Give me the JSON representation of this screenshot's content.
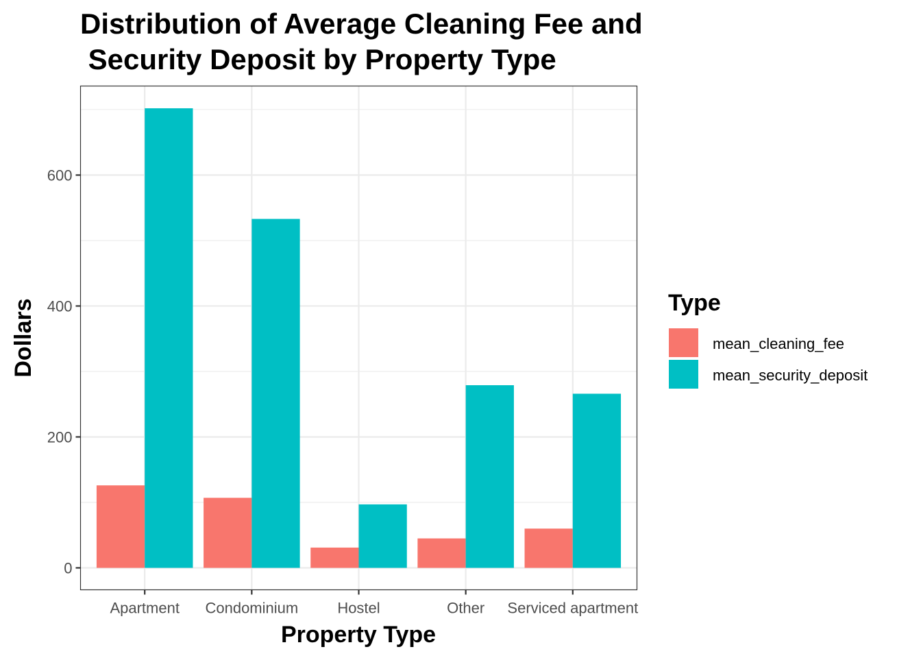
{
  "chart_data": {
    "type": "bar",
    "title_lines": [
      "Distribution of Average Cleaning Fee and",
      " Security Deposit by Property Type"
    ],
    "xlabel": "Property Type",
    "ylabel": "Dollars",
    "categories": [
      "Apartment",
      "Condominium",
      "Hostel",
      "Other",
      "Serviced apartment"
    ],
    "series": [
      {
        "name": "mean_cleaning_fee",
        "color": "#F8766D",
        "values": [
          126,
          107,
          31,
          45,
          60
        ]
      },
      {
        "name": "mean_security_deposit",
        "color": "#00BFC4",
        "values": [
          702,
          533,
          97,
          279,
          266
        ]
      }
    ],
    "ylim": [
      -33.5,
      736
    ],
    "yticks": [
      0,
      200,
      400,
      600
    ],
    "ytick_labels": [
      "0",
      "200",
      "400",
      "600"
    ],
    "grid": true,
    "legend": {
      "title": "Type",
      "position": "right"
    }
  }
}
